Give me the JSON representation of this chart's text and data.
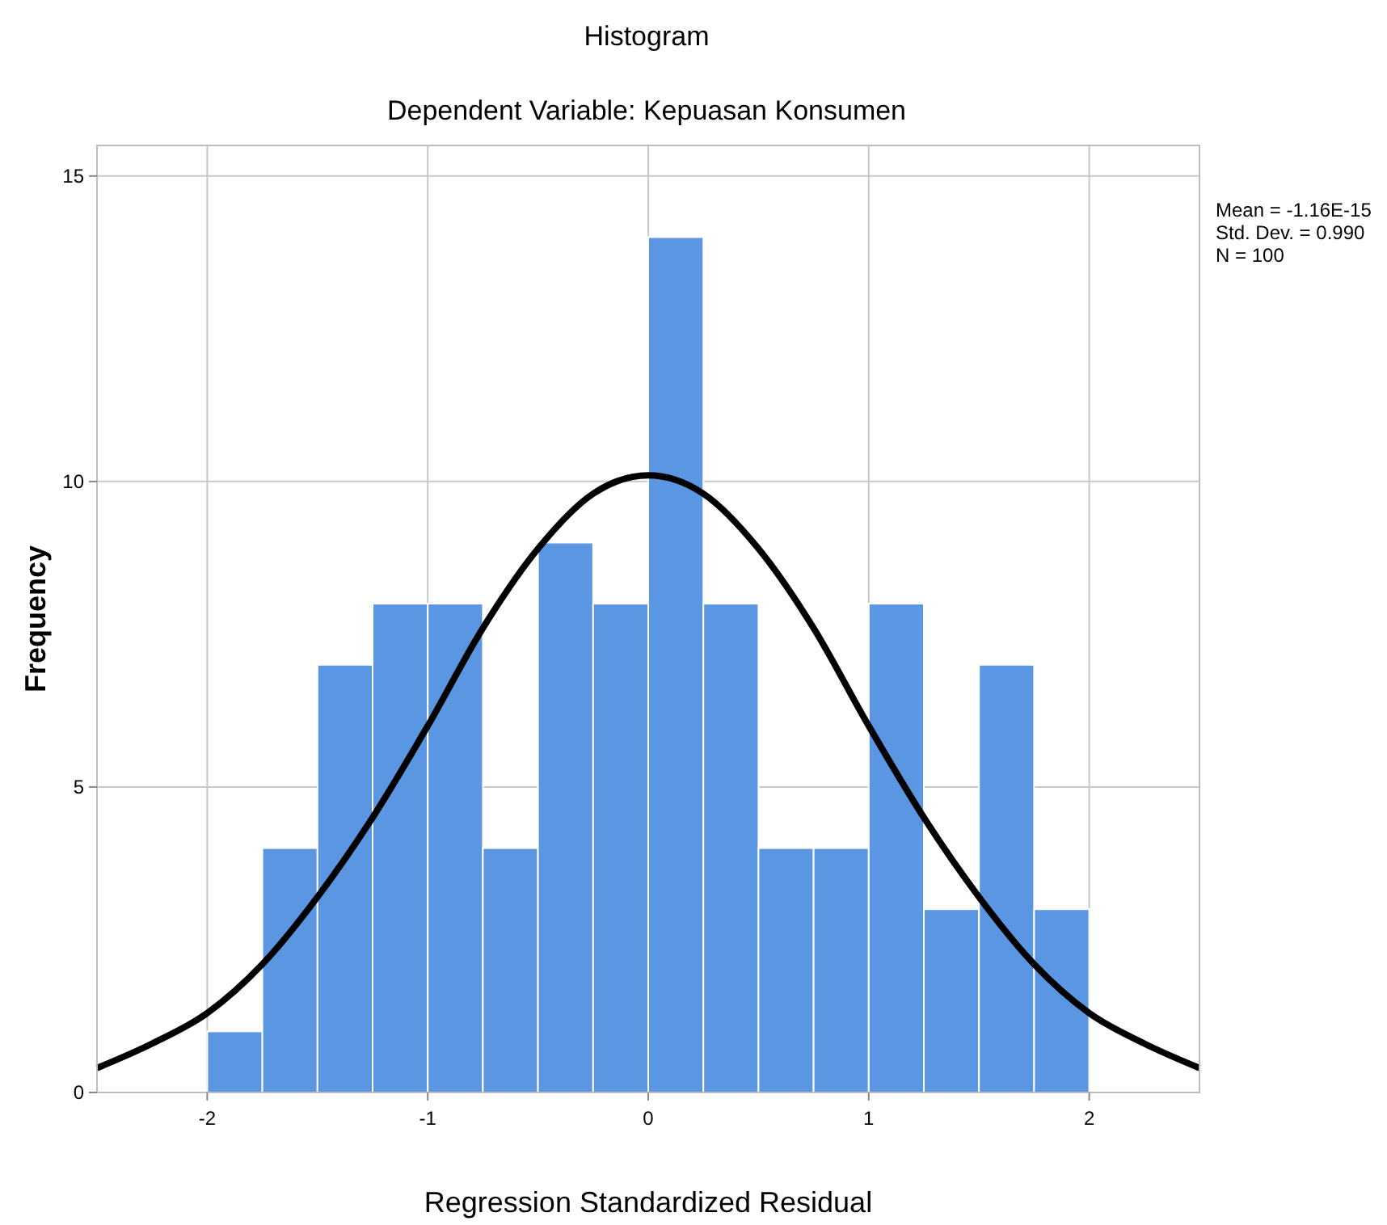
{
  "chart_data": {
    "type": "histogram",
    "title": "Histogram",
    "subtitle": "Dependent Variable: Kepuasan Konsumen",
    "xlabel": "Regression Standardized Residual",
    "ylabel": "Frequency",
    "bins": [
      -2,
      -1.75,
      -1.5,
      -1.25,
      -1,
      -0.75,
      -0.5,
      -0.25,
      0,
      0.25,
      0.5,
      0.75,
      1,
      1.25,
      1.5,
      1.75,
      2
    ],
    "values": [
      1,
      4,
      7,
      8,
      8,
      4,
      9,
      8,
      14,
      8,
      4,
      4,
      8,
      3,
      7,
      3
    ],
    "color": "#5b96e3",
    "series": [
      {
        "type": "line",
        "color": "#000000",
        "x": [
          -2.5,
          -2.25,
          -2,
          -1.75,
          -1.5,
          -1.25,
          -1,
          -0.75,
          -0.5,
          -0.25,
          0,
          0.25,
          0.5,
          0.75,
          1,
          1.25,
          1.5,
          1.75,
          2,
          2.25,
          2.5
        ],
        "values": [
          0.4,
          0.8,
          1.3,
          2.1,
          3.2,
          4.5,
          6.0,
          7.6,
          8.9,
          9.8,
          10.1,
          9.8,
          8.9,
          7.6,
          6.0,
          4.5,
          3.2,
          2.1,
          1.3,
          0.8,
          0.4
        ]
      }
    ],
    "xlim": [
      -2.5,
      2.5
    ],
    "ylim": [
      0,
      15.5
    ],
    "xticks": [
      -2,
      -1,
      0,
      1,
      2
    ],
    "yticks": [
      0,
      5,
      10,
      15
    ],
    "grid": true,
    "annotations": [
      "Mean = -1.16E-15",
      "Std. Dev. = 0.990",
      "N = 100"
    ]
  }
}
